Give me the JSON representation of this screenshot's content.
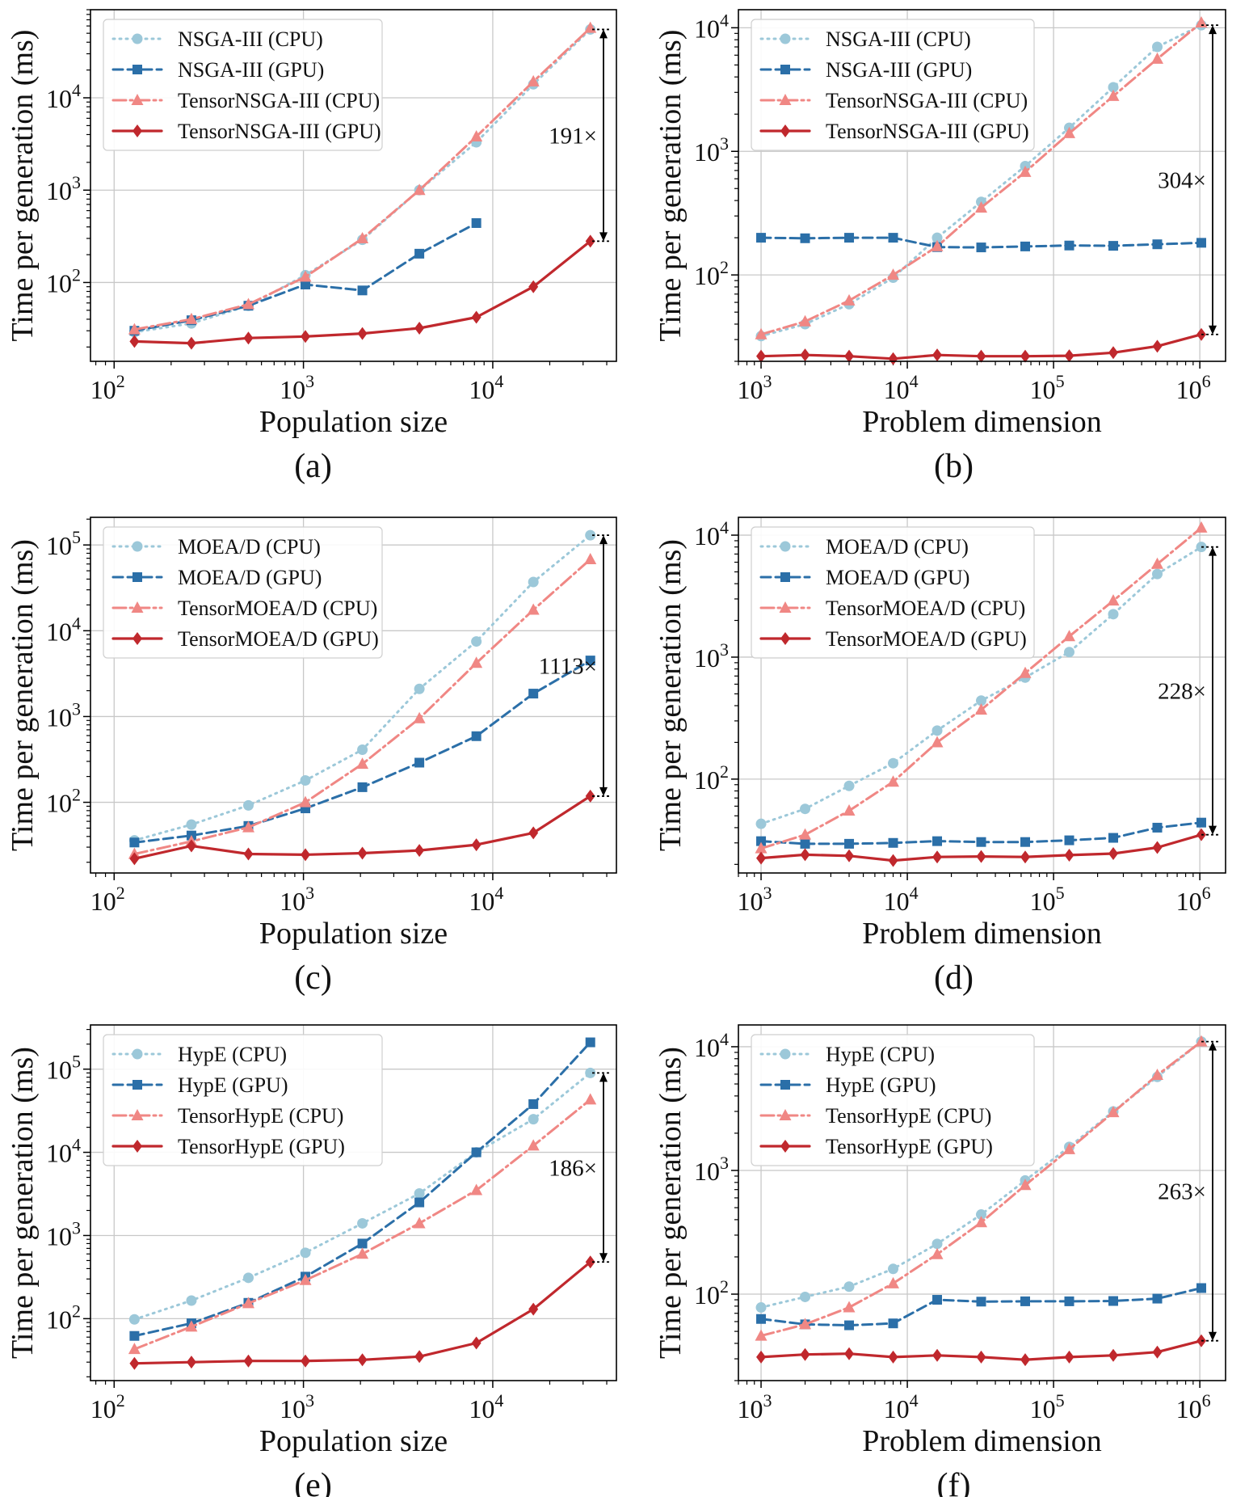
{
  "colors": {
    "cpu_base": "#9cc8d9",
    "gpu_base": "#2b6fa8",
    "cpu_tensor": "#f08784",
    "gpu_tensor": "#c0282d",
    "grid": "#c8c8c8",
    "axis": "#000000"
  },
  "chart_data": [
    {
      "type": "line",
      "panel_label": "(a)",
      "xlabel": "Population size",
      "ylabel": "Time per generation (ms)",
      "xscale": "log",
      "yscale": "log",
      "xlim": [
        75,
        45000
      ],
      "ylim": [
        14,
        90000
      ],
      "xticks": [
        {
          "v": 100,
          "base": "10",
          "exp": "2"
        },
        {
          "v": 1000,
          "base": "10",
          "exp": "3"
        },
        {
          "v": 10000,
          "base": "10",
          "exp": "4"
        }
      ],
      "yticks": [
        {
          "v": 100,
          "base": "10",
          "exp": "2"
        },
        {
          "v": 1000,
          "base": "10",
          "exp": "3"
        },
        {
          "v": 10000,
          "base": "10",
          "exp": "4"
        }
      ],
      "grid": true,
      "legend_position": "top-left",
      "series": [
        {
          "name": "NSGA-III (CPU)",
          "style": "cpu_base",
          "x": [
            128,
            256,
            512,
            1024,
            2048,
            4096,
            8192,
            16384,
            32768
          ],
          "y": [
            29,
            36,
            56,
            120,
            290,
            1000,
            3300,
            14000,
            55000
          ]
        },
        {
          "name": "NSGA-III (GPU)",
          "style": "gpu_base",
          "x": [
            128,
            256,
            512,
            1024,
            2048,
            4096,
            8192
          ],
          "y": [
            30,
            39,
            56,
            95,
            82,
            205,
            440
          ]
        },
        {
          "name": "TensorNSGA-III (CPU)",
          "style": "cpu_tensor",
          "x": [
            128,
            256,
            512,
            1024,
            2048,
            4096,
            8192,
            16384,
            32768
          ],
          "y": [
            31,
            40,
            58,
            115,
            300,
            1000,
            3800,
            15000,
            57000
          ]
        },
        {
          "name": "TensorNSGA-III (GPU)",
          "style": "gpu_tensor",
          "x": [
            128,
            256,
            512,
            1024,
            2048,
            4096,
            8192,
            16384,
            32768
          ],
          "y": [
            23,
            22,
            25,
            26,
            28,
            32,
            42,
            90,
            280
          ]
        }
      ],
      "annotation": {
        "text": "191×",
        "x": 32768,
        "y_top": 55000,
        "y_bottom": 280
      }
    },
    {
      "type": "line",
      "panel_label": "(b)",
      "xlabel": "Problem dimension",
      "ylabel": "Time per generation (ms)",
      "xscale": "log",
      "yscale": "log",
      "xlim": [
        700,
        1500000
      ],
      "ylim": [
        20,
        14000
      ],
      "xticks": [
        {
          "v": 1000,
          "base": "10",
          "exp": "3"
        },
        {
          "v": 10000,
          "base": "10",
          "exp": "4"
        },
        {
          "v": 100000,
          "base": "10",
          "exp": "5"
        },
        {
          "v": 1000000,
          "base": "10",
          "exp": "6"
        }
      ],
      "yticks": [
        {
          "v": 100,
          "base": "10",
          "exp": "2"
        },
        {
          "v": 1000,
          "base": "10",
          "exp": "3"
        },
        {
          "v": 10000,
          "base": "10",
          "exp": "4"
        }
      ],
      "grid": true,
      "legend_position": "top-left",
      "series": [
        {
          "name": "NSGA-III (CPU)",
          "style": "cpu_base",
          "x": [
            1000,
            2000,
            4000,
            8000,
            16000,
            32000,
            64000,
            128000,
            256000,
            512000,
            1024000
          ],
          "y": [
            32,
            40,
            58,
            95,
            200,
            390,
            760,
            1550,
            3300,
            7000,
            10500
          ]
        },
        {
          "name": "NSGA-III (GPU)",
          "style": "gpu_base",
          "x": [
            1000,
            2000,
            4000,
            8000,
            16000,
            32000,
            64000,
            128000,
            256000,
            512000,
            1024000
          ],
          "y": [
            200,
            198,
            200,
            200,
            168,
            167,
            170,
            173,
            172,
            177,
            182
          ]
        },
        {
          "name": "TensorNSGA-III (CPU)",
          "style": "cpu_tensor",
          "x": [
            1000,
            2000,
            4000,
            8000,
            16000,
            32000,
            64000,
            128000,
            256000,
            512000,
            1024000
          ],
          "y": [
            33,
            42,
            62,
            100,
            170,
            350,
            680,
            1400,
            2800,
            5600,
            11000
          ]
        },
        {
          "name": "TensorNSGA-III (GPU)",
          "style": "gpu_tensor",
          "x": [
            1000,
            2000,
            4000,
            8000,
            16000,
            32000,
            64000,
            128000,
            256000,
            512000,
            1024000
          ],
          "y": [
            22,
            22.5,
            22,
            21,
            22.5,
            22,
            22,
            22.2,
            23.5,
            26.5,
            33
          ]
        }
      ],
      "annotation": {
        "text": "304×",
        "x": 1024000,
        "y_top": 10500,
        "y_bottom": 33
      }
    },
    {
      "type": "line",
      "panel_label": "(c)",
      "xlabel": "Population size",
      "ylabel": "Time per generation (ms)",
      "xscale": "log",
      "yscale": "log",
      "xlim": [
        75,
        45000
      ],
      "ylim": [
        15,
        210000
      ],
      "xticks": [
        {
          "v": 100,
          "base": "10",
          "exp": "2"
        },
        {
          "v": 1000,
          "base": "10",
          "exp": "3"
        },
        {
          "v": 10000,
          "base": "10",
          "exp": "4"
        }
      ],
      "yticks": [
        {
          "v": 100,
          "base": "10",
          "exp": "2"
        },
        {
          "v": 1000,
          "base": "10",
          "exp": "3"
        },
        {
          "v": 10000,
          "base": "10",
          "exp": "4"
        },
        {
          "v": 100000,
          "base": "10",
          "exp": "5"
        }
      ],
      "grid": true,
      "legend_position": "top-left",
      "series": [
        {
          "name": "MOEA/D (CPU)",
          "style": "cpu_base",
          "x": [
            128,
            256,
            512,
            1024,
            2048,
            4096,
            8192,
            16384,
            32768
          ],
          "y": [
            36,
            55,
            92,
            180,
            410,
            2100,
            7500,
            37000,
            130000
          ]
        },
        {
          "name": "MOEA/D (GPU)",
          "style": "gpu_base",
          "x": [
            128,
            256,
            512,
            1024,
            2048,
            4096,
            8192,
            16384,
            32768
          ],
          "y": [
            34,
            41,
            53,
            85,
            150,
            290,
            590,
            1850,
            4500
          ]
        },
        {
          "name": "TensorMOEA/D (CPU)",
          "style": "cpu_tensor",
          "x": [
            128,
            256,
            512,
            1024,
            2048,
            4096,
            8192,
            16384,
            32768
          ],
          "y": [
            25,
            35,
            51,
            100,
            280,
            950,
            4200,
            17500,
            68000
          ]
        },
        {
          "name": "TensorMOEA/D (GPU)",
          "style": "gpu_tensor",
          "x": [
            128,
            256,
            512,
            1024,
            2048,
            4096,
            8192,
            16384,
            32768
          ],
          "y": [
            22,
            31,
            25,
            24.5,
            25.5,
            27.5,
            32,
            44,
            118
          ]
        }
      ],
      "annotation": {
        "text": "1113×",
        "x": 32768,
        "y_top": 130000,
        "y_bottom": 118
      }
    },
    {
      "type": "line",
      "panel_label": "(d)",
      "xlabel": "Problem dimension",
      "ylabel": "Time per generation (ms)",
      "xscale": "log",
      "yscale": "log",
      "xlim": [
        700,
        1500000
      ],
      "ylim": [
        17,
        14000
      ],
      "xticks": [
        {
          "v": 1000,
          "base": "10",
          "exp": "3"
        },
        {
          "v": 10000,
          "base": "10",
          "exp": "4"
        },
        {
          "v": 100000,
          "base": "10",
          "exp": "5"
        },
        {
          "v": 1000000,
          "base": "10",
          "exp": "6"
        }
      ],
      "yticks": [
        {
          "v": 100,
          "base": "10",
          "exp": "2"
        },
        {
          "v": 1000,
          "base": "10",
          "exp": "3"
        },
        {
          "v": 10000,
          "base": "10",
          "exp": "4"
        }
      ],
      "grid": true,
      "legend_position": "top-left",
      "series": [
        {
          "name": "MOEA/D (CPU)",
          "style": "cpu_base",
          "x": [
            1000,
            2000,
            4000,
            8000,
            16000,
            32000,
            64000,
            128000,
            256000,
            512000,
            1024000
          ],
          "y": [
            43,
            57,
            88,
            135,
            250,
            440,
            680,
            1100,
            2250,
            4800,
            8000
          ]
        },
        {
          "name": "MOEA/D (GPU)",
          "style": "gpu_base",
          "x": [
            1000,
            2000,
            4000,
            8000,
            16000,
            32000,
            64000,
            128000,
            256000,
            512000,
            1024000
          ],
          "y": [
            31,
            29.5,
            29.5,
            30,
            31,
            30.5,
            30.5,
            31.5,
            33,
            40,
            44
          ]
        },
        {
          "name": "TensorMOEA/D (CPU)",
          "style": "cpu_tensor",
          "x": [
            1000,
            2000,
            4000,
            8000,
            16000,
            32000,
            64000,
            128000,
            256000,
            512000,
            1024000
          ],
          "y": [
            27,
            35,
            55,
            95,
            200,
            370,
            740,
            1480,
            2900,
            5800,
            11500
          ]
        },
        {
          "name": "TensorMOEA/D (GPU)",
          "style": "gpu_tensor",
          "x": [
            1000,
            2000,
            4000,
            8000,
            16000,
            32000,
            64000,
            128000,
            256000,
            512000,
            1024000
          ],
          "y": [
            22.5,
            24,
            23.5,
            21.5,
            23,
            23.2,
            23,
            23.8,
            24.5,
            27.5,
            35
          ]
        }
      ],
      "annotation": {
        "text": "228×",
        "x": 1024000,
        "y_top": 8000,
        "y_bottom": 35
      }
    },
    {
      "type": "line",
      "panel_label": "(e)",
      "xlabel": "Population size",
      "ylabel": "Time per generation (ms)",
      "xscale": "log",
      "yscale": "log",
      "xlim": [
        75,
        45000
      ],
      "ylim": [
        18,
        340000
      ],
      "xticks": [
        {
          "v": 100,
          "base": "10",
          "exp": "2"
        },
        {
          "v": 1000,
          "base": "10",
          "exp": "3"
        },
        {
          "v": 10000,
          "base": "10",
          "exp": "4"
        }
      ],
      "yticks": [
        {
          "v": 100,
          "base": "10",
          "exp": "2"
        },
        {
          "v": 1000,
          "base": "10",
          "exp": "3"
        },
        {
          "v": 10000,
          "base": "10",
          "exp": "4"
        },
        {
          "v": 100000,
          "base": "10",
          "exp": "5"
        }
      ],
      "grid": true,
      "legend_position": "top-left",
      "series": [
        {
          "name": "HypE (CPU)",
          "style": "cpu_base",
          "x": [
            128,
            256,
            512,
            1024,
            2048,
            4096,
            8192,
            16384,
            32768
          ],
          "y": [
            98,
            165,
            310,
            620,
            1400,
            3200,
            10000,
            25000,
            90000
          ]
        },
        {
          "name": "HypE (GPU)",
          "style": "gpu_base",
          "x": [
            128,
            256,
            512,
            1024,
            2048,
            4096,
            8192,
            16384,
            32768
          ],
          "y": [
            62,
            88,
            155,
            320,
            800,
            2500,
            10000,
            38000,
            210000
          ]
        },
        {
          "name": "TensorHypE (CPU)",
          "style": "cpu_tensor",
          "x": [
            128,
            256,
            512,
            1024,
            2048,
            4096,
            8192,
            16384,
            32768
          ],
          "y": [
            43,
            80,
            153,
            290,
            600,
            1400,
            3500,
            12000,
            43000
          ]
        },
        {
          "name": "TensorHypE (GPU)",
          "style": "gpu_tensor",
          "x": [
            128,
            256,
            512,
            1024,
            2048,
            4096,
            8192,
            16384,
            32768
          ],
          "y": [
            29,
            30,
            31,
            31,
            32,
            35,
            51,
            130,
            480
          ]
        }
      ],
      "annotation": {
        "text": "186×",
        "x": 32768,
        "y_top": 90000,
        "y_bottom": 480
      }
    },
    {
      "type": "line",
      "panel_label": "(f)",
      "xlabel": "Problem dimension",
      "ylabel": "Time per generation (ms)",
      "xscale": "log",
      "yscale": "log",
      "xlim": [
        700,
        1500000
      ],
      "ylim": [
        20,
        15000
      ],
      "xticks": [
        {
          "v": 1000,
          "base": "10",
          "exp": "3"
        },
        {
          "v": 10000,
          "base": "10",
          "exp": "4"
        },
        {
          "v": 100000,
          "base": "10",
          "exp": "5"
        },
        {
          "v": 1000000,
          "base": "10",
          "exp": "6"
        }
      ],
      "yticks": [
        {
          "v": 100,
          "base": "10",
          "exp": "2"
        },
        {
          "v": 1000,
          "base": "10",
          "exp": "3"
        },
        {
          "v": 10000,
          "base": "10",
          "exp": "4"
        }
      ],
      "grid": true,
      "legend_position": "top-left",
      "series": [
        {
          "name": "HypE (CPU)",
          "style": "cpu_base",
          "x": [
            1000,
            2000,
            4000,
            8000,
            16000,
            32000,
            64000,
            128000,
            256000,
            512000,
            1024000
          ],
          "y": [
            78,
            95,
            115,
            160,
            255,
            440,
            830,
            1550,
            3000,
            5700,
            11000
          ]
        },
        {
          "name": "HypE (GPU)",
          "style": "gpu_base",
          "x": [
            1000,
            2000,
            4000,
            8000,
            16000,
            32000,
            64000,
            128000,
            256000,
            512000,
            1024000
          ],
          "y": [
            63,
            57,
            56,
            58,
            90,
            87,
            87.5,
            87.5,
            88,
            92,
            112
          ]
        },
        {
          "name": "TensorHypE (CPU)",
          "style": "cpu_tensor",
          "x": [
            1000,
            2000,
            4000,
            8000,
            16000,
            32000,
            64000,
            128000,
            256000,
            512000,
            1024000
          ],
          "y": [
            46,
            57,
            78,
            122,
            210,
            380,
            760,
            1480,
            2950,
            5900,
            11000
          ]
        },
        {
          "name": "TensorHypE (GPU)",
          "style": "gpu_tensor",
          "x": [
            1000,
            2000,
            4000,
            8000,
            16000,
            32000,
            64000,
            128000,
            256000,
            512000,
            1024000
          ],
          "y": [
            31,
            32.5,
            33,
            31,
            32,
            31,
            29.5,
            31,
            32,
            34,
            42
          ]
        }
      ],
      "annotation": {
        "text": "263×",
        "x": 1024000,
        "y_top": 11000,
        "y_bottom": 42
      }
    }
  ]
}
